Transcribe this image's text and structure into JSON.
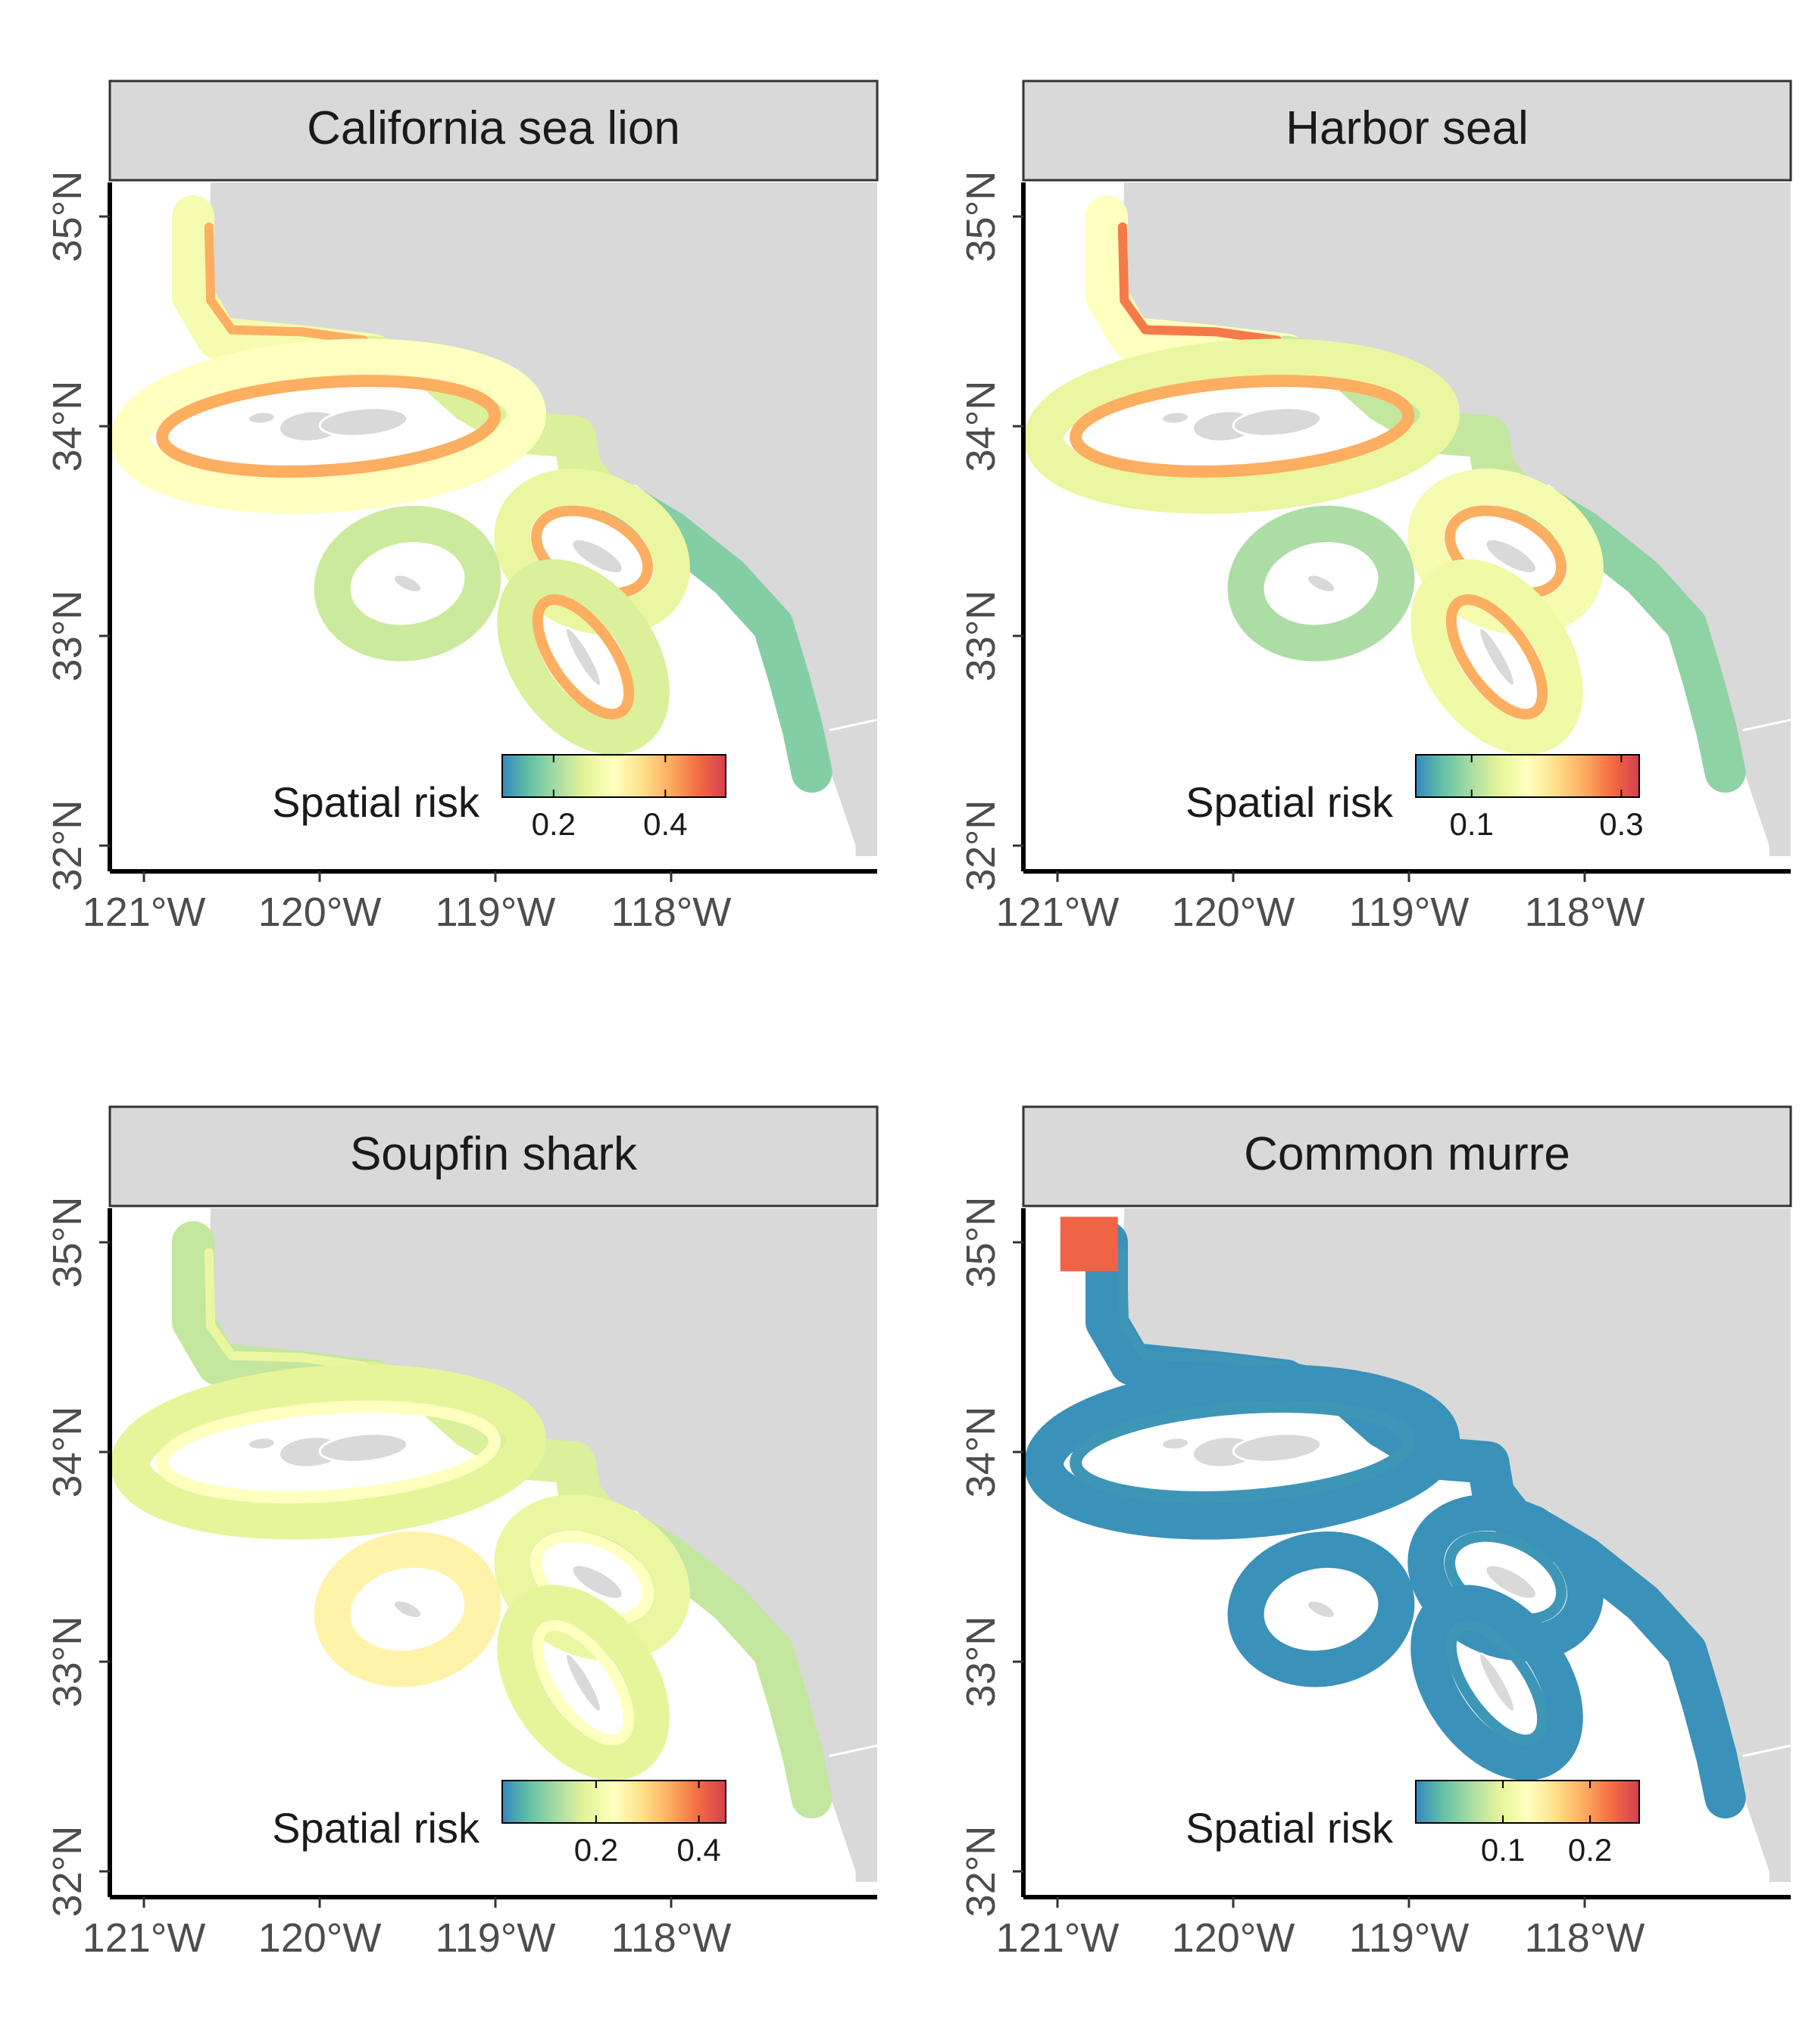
{
  "figure": {
    "x_tick_labels": [
      "121°W",
      "120°W",
      "119°W",
      "118°W"
    ],
    "y_tick_labels": [
      "32°N",
      "33°N",
      "34°N",
      "35°N"
    ],
    "legend_title": "Spatial risk",
    "colormap": [
      "#3288bd",
      "#66c2a5",
      "#abdda4",
      "#e6f598",
      "#ffffbf",
      "#fee08b",
      "#fdae61",
      "#f46d43",
      "#d53e4f"
    ],
    "land_color": "#d9d9d9",
    "strip_color": "#d9d9d9"
  },
  "panels": [
    {
      "title": "California sea lion",
      "legend": {
        "ticks": [
          "0.2",
          "0.4"
        ],
        "tick_positions": [
          0.23,
          0.73
        ]
      },
      "zones": {
        "north_coast": 0.45,
        "channel_coast": 0.35,
        "islands": 0.5,
        "san_nicolas": 0.32,
        "catalina": 0.4,
        "clemente": 0.35,
        "south_coast": 0.18,
        "inner_edge": 0.75,
        "mainland_edge": 0.75
      }
    },
    {
      "title": "Harbor seal",
      "legend": {
        "ticks": [
          "0.1",
          "0.3"
        ],
        "tick_positions": [
          0.25,
          0.92
        ]
      },
      "zones": {
        "north_coast": 0.5,
        "channel_coast": 0.3,
        "islands": 0.4,
        "san_nicolas": 0.25,
        "catalina": 0.45,
        "clemente": 0.42,
        "south_coast": 0.2,
        "inner_edge": 0.75,
        "mainland_edge": 0.85
      }
    },
    {
      "title": "Soupfin shark",
      "legend": {
        "ticks": [
          "0.2",
          "0.4"
        ],
        "tick_positions": [
          0.42,
          0.88
        ]
      },
      "zones": {
        "north_coast": 0.3,
        "channel_coast": 0.35,
        "islands": 0.38,
        "san_nicolas": 0.55,
        "catalina": 0.4,
        "clemente": 0.38,
        "south_coast": 0.3,
        "inner_edge": 0.5,
        "mainland_edge": 0.4
      }
    },
    {
      "title": "Common murre",
      "legend": {
        "ticks": [
          "0.1",
          "0.2"
        ],
        "tick_positions": [
          0.39,
          0.78
        ]
      },
      "zones": {
        "north_coast": 0.02,
        "channel_coast": 0.02,
        "islands": 0.02,
        "san_nicolas": 0.02,
        "catalina": 0.02,
        "clemente": 0.02,
        "south_coast": 0.02,
        "inner_edge": 0.03,
        "mainland_edge": 0.03,
        "hotspot": 0.9
      }
    }
  ]
}
